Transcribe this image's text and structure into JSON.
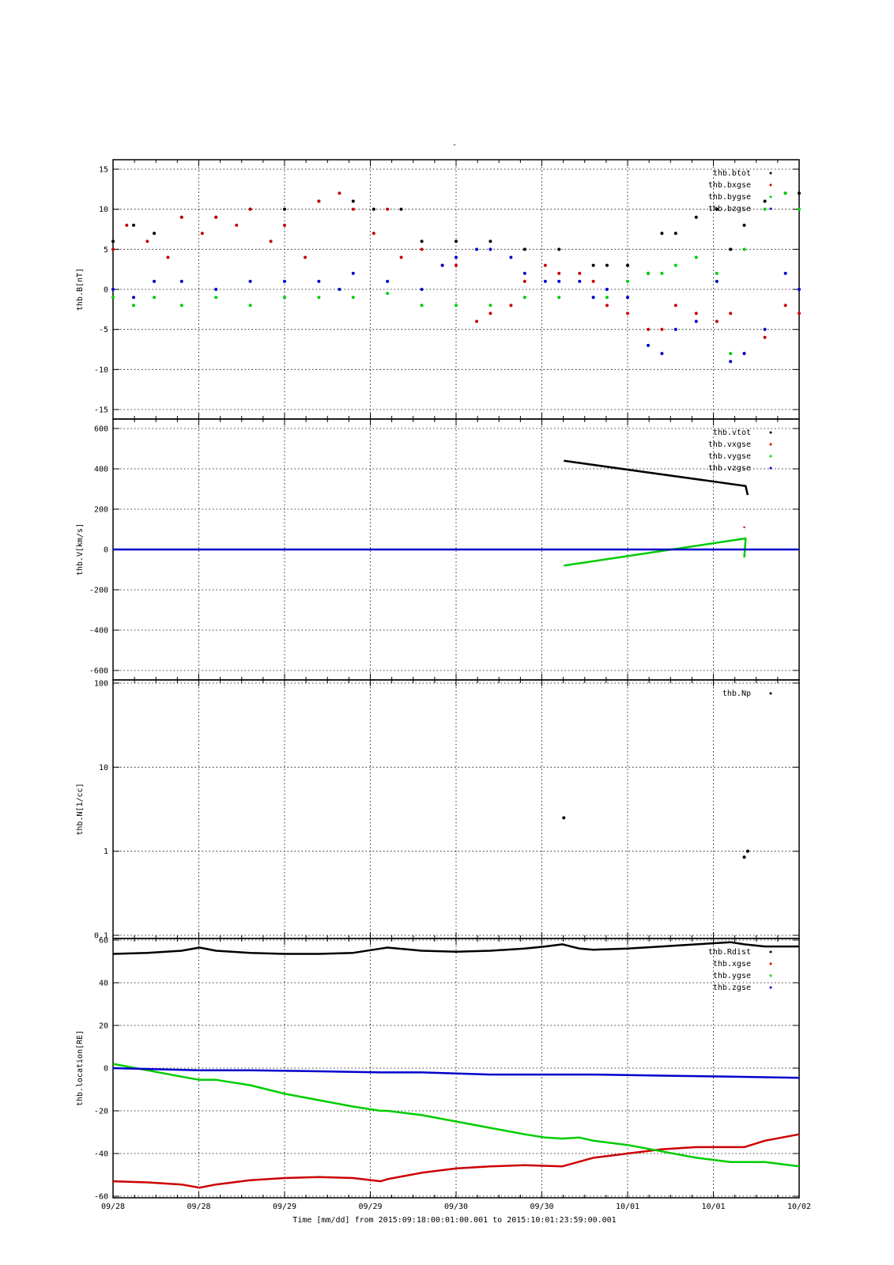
{
  "figure_title": "-",
  "time_label": "Time [mm/dd]  from 2015:09:18:00:01:00.001  to  2015:10:01:23:59:00.001",
  "colors": {
    "black": "#000000",
    "red": "#cc0000",
    "green": "#00cc00",
    "blue": "#0000cc"
  },
  "x_ticks": [
    "09/28",
    "09/28",
    "09/29",
    "09/29",
    "09/30",
    "09/30",
    "10/01",
    "10/01",
    "10/02"
  ],
  "chart_data": [
    {
      "type": "scatter",
      "ylabel": "thb.B[nT]",
      "ylim": [
        -15,
        15
      ],
      "yticks": [
        "15",
        "10",
        "5",
        "0",
        "-5",
        "-10",
        "-15"
      ],
      "grid": true,
      "legend_placement": "top-right",
      "series": [
        {
          "name": "thb.btot",
          "color": "#000000",
          "x": [
            0,
            0.03,
            0.06,
            0.1,
            0.15,
            0.2,
            0.25,
            0.3,
            0.35,
            0.38,
            0.42,
            0.45,
            0.5,
            0.55,
            0.6,
            0.65,
            0.7,
            0.72,
            0.75,
            0.78,
            0.8,
            0.82,
            0.85,
            0.88,
            0.9,
            0.92,
            0.95,
            0.98,
            1.0
          ],
          "y": [
            6,
            8,
            7,
            9,
            9,
            10,
            10,
            11,
            11,
            10,
            10,
            6,
            6,
            6,
            5,
            5,
            3,
            3,
            3,
            2,
            7,
            7,
            9,
            10,
            5,
            8,
            11,
            12,
            12
          ]
        },
        {
          "name": "thb.bxgse",
          "color": "#cc0000",
          "x": [
            0,
            0.02,
            0.05,
            0.08,
            0.1,
            0.13,
            0.15,
            0.18,
            0.2,
            0.23,
            0.25,
            0.28,
            0.3,
            0.33,
            0.35,
            0.38,
            0.4,
            0.42,
            0.45,
            0.48,
            0.5,
            0.53,
            0.55,
            0.58,
            0.6,
            0.63,
            0.65,
            0.68,
            0.7,
            0.72,
            0.75,
            0.78,
            0.8,
            0.82,
            0.85,
            0.88,
            0.9,
            0.92,
            0.95,
            0.98,
            1.0
          ],
          "y": [
            5,
            8,
            6,
            4,
            9,
            7,
            9,
            8,
            10,
            6,
            8,
            4,
            11,
            12,
            10,
            7,
            10,
            4,
            5,
            3,
            3,
            -4,
            -3,
            -2,
            1,
            3,
            2,
            2,
            1,
            -2,
            -3,
            -5,
            -5,
            -2,
            -3,
            -4,
            -3,
            -8,
            -6,
            -2,
            -3
          ]
        },
        {
          "name": "thb.bygse",
          "color": "#00cc00",
          "x": [
            0,
            0.03,
            0.06,
            0.1,
            0.15,
            0.2,
            0.25,
            0.3,
            0.35,
            0.4,
            0.45,
            0.5,
            0.55,
            0.6,
            0.65,
            0.7,
            0.72,
            0.75,
            0.78,
            0.8,
            0.82,
            0.85,
            0.88,
            0.9,
            0.92,
            0.95,
            0.98,
            1.0
          ],
          "y": [
            -1,
            -2,
            -1,
            -2,
            -1,
            -2,
            -1,
            -1,
            -1,
            -0.5,
            -2,
            -2,
            -2,
            -1,
            -1,
            -1,
            -1,
            1,
            2,
            2,
            3,
            4,
            2,
            -8,
            5,
            10,
            12,
            10
          ]
        },
        {
          "name": "thb.bzgse",
          "color": "#0000cc",
          "x": [
            0,
            0.03,
            0.06,
            0.1,
            0.15,
            0.2,
            0.25,
            0.3,
            0.33,
            0.35,
            0.4,
            0.45,
            0.48,
            0.5,
            0.53,
            0.55,
            0.58,
            0.6,
            0.63,
            0.65,
            0.68,
            0.7,
            0.72,
            0.75,
            0.78,
            0.8,
            0.82,
            0.85,
            0.88,
            0.9,
            0.92,
            0.95,
            0.98,
            1.0
          ],
          "y": [
            0,
            -1,
            1,
            1,
            0,
            1,
            1,
            1,
            0,
            2,
            1,
            0,
            3,
            4,
            5,
            5,
            4,
            2,
            1,
            1,
            1,
            -1,
            0,
            -1,
            -7,
            -8,
            -5,
            -4,
            1,
            -9,
            -8,
            -5,
            2,
            0
          ]
        }
      ]
    },
    {
      "type": "line",
      "ylabel": "thb.V[km/s]",
      "ylim": [
        -600,
        600
      ],
      "yticks": [
        "600",
        "400",
        "200",
        "0",
        "-200",
        "-400",
        "-600"
      ],
      "grid": true,
      "legend_placement": "top-right",
      "series": [
        {
          "name": "thb.vtot",
          "color": "#000000",
          "x": [
            0.657,
            0.922,
            0.925
          ],
          "y": [
            440,
            315,
            270
          ]
        },
        {
          "name": "thb.vxgse",
          "color": "#cc0000",
          "x": [
            0.92
          ],
          "y": [
            110
          ]
        },
        {
          "name": "thb.vygse",
          "color": "#00cc00",
          "x": [
            0.657,
            0.922,
            0.92
          ],
          "y": [
            -80,
            55,
            -40
          ]
        },
        {
          "name": "thb.vzgse",
          "color": "#0000cc",
          "x": [
            0,
            1
          ],
          "y": [
            0,
            0
          ]
        }
      ]
    },
    {
      "type": "scatter",
      "ylabel": "thb.N[1/cc]",
      "ylim": [
        0.1,
        100
      ],
      "log_scale": true,
      "yticks": [
        "100",
        "10",
        "1",
        "0.1"
      ],
      "grid": true,
      "legend_placement": "top-right",
      "series": [
        {
          "name": "thb.Np",
          "color": "#000000",
          "x": [
            0.657,
            0.92,
            0.925
          ],
          "y": [
            2.5,
            0.85,
            1.0
          ]
        }
      ]
    },
    {
      "type": "line",
      "ylabel": "thb.location[RE]",
      "ylim": [
        -60,
        60
      ],
      "yticks": [
        "60",
        "40",
        "20",
        "0",
        "-20",
        "-40",
        "-60"
      ],
      "grid": true,
      "legend_placement": "top-right",
      "series": [
        {
          "name": "thb.Rdist",
          "color": "#000000",
          "x": [
            0,
            0.05,
            0.1,
            0.126,
            0.15,
            0.2,
            0.25,
            0.3,
            0.35,
            0.39,
            0.4,
            0.45,
            0.5,
            0.55,
            0.6,
            0.63,
            0.655,
            0.68,
            0.7,
            0.75,
            0.8,
            0.85,
            0.9,
            0.92,
            0.95,
            1.0
          ],
          "y": [
            53.5,
            54,
            55,
            56.5,
            55,
            54,
            53.5,
            53.5,
            54,
            56,
            56.5,
            55,
            54.5,
            55,
            56,
            57,
            58,
            56,
            55.5,
            56,
            57,
            58,
            59,
            58,
            57,
            57
          ]
        },
        {
          "name": "thb.xgse",
          "color": "#cc0000",
          "x": [
            0,
            0.05,
            0.1,
            0.126,
            0.15,
            0.2,
            0.25,
            0.3,
            0.35,
            0.39,
            0.4,
            0.45,
            0.5,
            0.55,
            0.6,
            0.655,
            0.7,
            0.75,
            0.8,
            0.85,
            0.9,
            0.92,
            0.95,
            1.0
          ],
          "y": [
            -53,
            -53.5,
            -54.5,
            -56,
            -54.5,
            -52.5,
            -51.5,
            -51,
            -51.5,
            -53,
            -52,
            -49,
            -47,
            -46,
            -45.5,
            -46,
            -42,
            -40,
            -38,
            -37,
            -37,
            -37,
            -34,
            -31
          ]
        },
        {
          "name": "thb.ygse",
          "color": "#00cc00",
          "x": [
            0,
            0.05,
            0.1,
            0.126,
            0.15,
            0.2,
            0.25,
            0.3,
            0.35,
            0.39,
            0.4,
            0.45,
            0.5,
            0.55,
            0.6,
            0.63,
            0.655,
            0.68,
            0.7,
            0.75,
            0.8,
            0.85,
            0.9,
            0.92,
            0.95,
            1.0
          ],
          "y": [
            2,
            -1,
            -4,
            -5.5,
            -5.5,
            -8,
            -12,
            -15,
            -18,
            -20,
            -20,
            -22,
            -25,
            -28,
            -31,
            -32.5,
            -33,
            -32.5,
            -34,
            -36,
            -39,
            -42,
            -44,
            -44,
            -44,
            -46
          ]
        },
        {
          "name": "thb.zgse",
          "color": "#0000cc",
          "x": [
            0,
            0.126,
            0.2,
            0.3,
            0.39,
            0.45,
            0.55,
            0.655,
            0.7,
            0.8,
            0.9,
            1.0
          ],
          "y": [
            0,
            -1,
            -1,
            -1.5,
            -2,
            -2,
            -3,
            -3,
            -3,
            -3.5,
            -4,
            -4.5
          ]
        }
      ]
    }
  ]
}
